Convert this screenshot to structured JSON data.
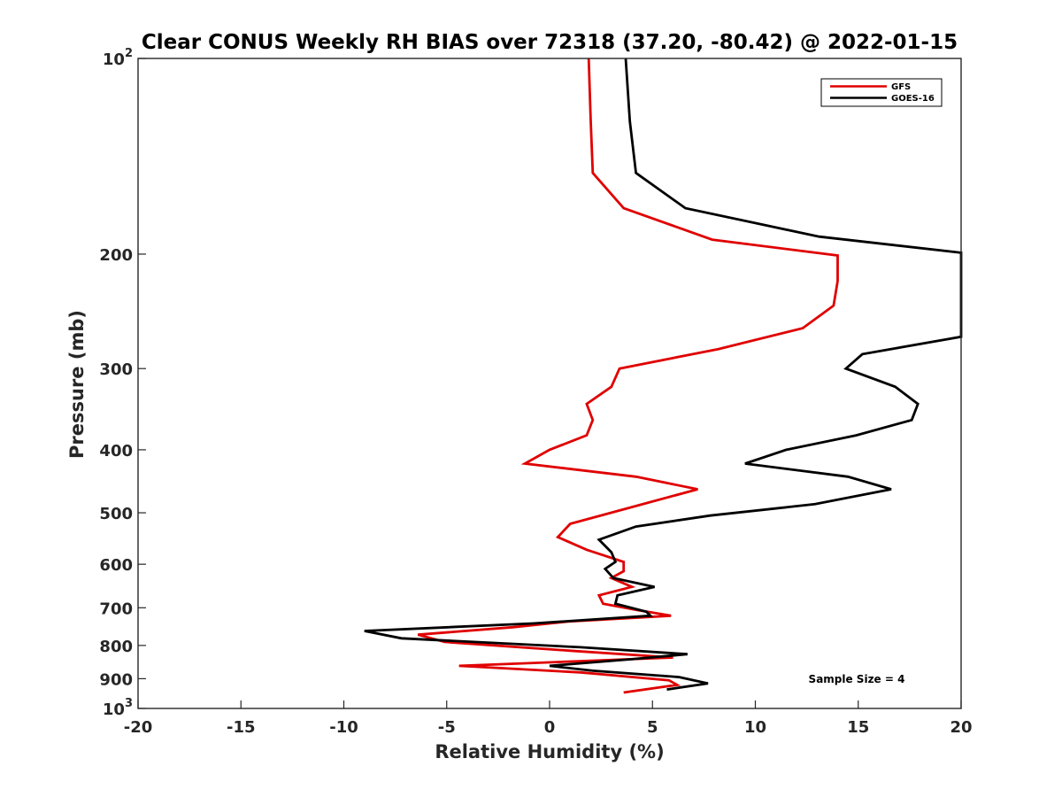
{
  "chart_data": {
    "type": "line",
    "title": "Clear CONUS Weekly RH BIAS over 72318 (37.20, -80.42) @ 2022-01-15",
    "xlabel": "Relative Humidity (%)",
    "ylabel": "Pressure (mb)",
    "xlim": [
      -20,
      20
    ],
    "ylim": [
      100,
      1000
    ],
    "yscale": "log",
    "y_reversed": true,
    "grid": false,
    "legend_position": "top-right",
    "x_ticks": [
      "-20",
      "-15",
      "-10",
      "-5",
      "0",
      "5",
      "10",
      "15",
      "20"
    ],
    "y_tick_values": [
      100,
      200,
      300,
      400,
      500,
      600,
      700,
      800,
      900,
      1000
    ],
    "y_tick_labels": [
      {
        "base": "10",
        "exp": "2"
      },
      {
        "base": "200",
        "exp": ""
      },
      {
        "base": "300",
        "exp": ""
      },
      {
        "base": "400",
        "exp": ""
      },
      {
        "base": "500",
        "exp": ""
      },
      {
        "base": "600",
        "exp": ""
      },
      {
        "base": "700",
        "exp": ""
      },
      {
        "base": "800",
        "exp": ""
      },
      {
        "base": "900",
        "exp": ""
      },
      {
        "base": "10",
        "exp": "3"
      }
    ],
    "annotation": "Sample Size = 4",
    "series": [
      {
        "name": "GFS",
        "color": "#e00000",
        "points": [
          [
            1.9,
            100
          ],
          [
            2.0,
            125
          ],
          [
            2.1,
            150
          ],
          [
            3.6,
            170
          ],
          [
            7.9,
            190
          ],
          [
            14.0,
            201
          ],
          [
            14.0,
            220
          ],
          [
            13.8,
            240
          ],
          [
            12.3,
            260
          ],
          [
            8.2,
            280
          ],
          [
            3.4,
            300
          ],
          [
            3.0,
            320
          ],
          [
            1.8,
            340
          ],
          [
            2.1,
            360
          ],
          [
            1.8,
            380
          ],
          [
            0.0,
            400
          ],
          [
            -1.2,
            420
          ],
          [
            4.2,
            440
          ],
          [
            7.2,
            460
          ],
          [
            4.0,
            490
          ],
          [
            1.0,
            520
          ],
          [
            0.4,
            545
          ],
          [
            1.8,
            570
          ],
          [
            3.6,
            595
          ],
          [
            3.6,
            615
          ],
          [
            3.0,
            630
          ],
          [
            4.0,
            650
          ],
          [
            2.4,
            670
          ],
          [
            2.6,
            690
          ],
          [
            4.2,
            705
          ],
          [
            5.9,
            720
          ],
          [
            0.9,
            735
          ],
          [
            -1.8,
            750
          ],
          [
            -6.4,
            770
          ],
          [
            -5.1,
            790
          ],
          [
            1.0,
            815
          ],
          [
            6.0,
            835
          ],
          [
            -4.4,
            860
          ],
          [
            1.5,
            880
          ],
          [
            5.8,
            905
          ],
          [
            6.2,
            920
          ],
          [
            3.6,
            945
          ]
        ]
      },
      {
        "name": "GOES-16",
        "color": "#000000",
        "points": [
          [
            3.7,
            100
          ],
          [
            3.9,
            125
          ],
          [
            4.2,
            150
          ],
          [
            6.6,
            170
          ],
          [
            13.1,
            188
          ],
          [
            20.0,
            199
          ],
          [
            20.0,
            268
          ],
          [
            15.2,
            285
          ],
          [
            14.4,
            300
          ],
          [
            16.8,
            320
          ],
          [
            17.9,
            340
          ],
          [
            17.6,
            360
          ],
          [
            14.9,
            380
          ],
          [
            11.5,
            400
          ],
          [
            9.5,
            420
          ],
          [
            14.5,
            440
          ],
          [
            16.6,
            460
          ],
          [
            12.9,
            485
          ],
          [
            7.8,
            505
          ],
          [
            4.2,
            525
          ],
          [
            2.4,
            550
          ],
          [
            3.0,
            575
          ],
          [
            3.2,
            595
          ],
          [
            2.7,
            610
          ],
          [
            3.1,
            630
          ],
          [
            5.1,
            650
          ],
          [
            3.3,
            670
          ],
          [
            3.2,
            690
          ],
          [
            4.7,
            710
          ],
          [
            4.9,
            720
          ],
          [
            -0.8,
            740
          ],
          [
            -9.0,
            760
          ],
          [
            -7.2,
            780
          ],
          [
            1.5,
            805
          ],
          [
            6.7,
            825
          ],
          [
            4.0,
            840
          ],
          [
            0.0,
            860
          ],
          [
            2.1,
            875
          ],
          [
            6.3,
            895
          ],
          [
            7.7,
            915
          ],
          [
            5.7,
            935
          ]
        ]
      }
    ]
  }
}
